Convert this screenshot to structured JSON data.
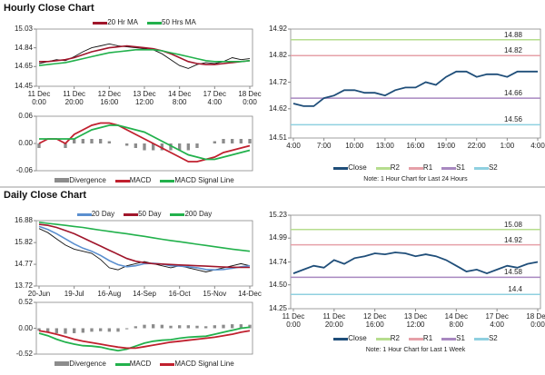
{
  "chart_data": [
    {
      "type": "line",
      "title": "Hourly Close Chart",
      "legend": "top",
      "categories": [
        "11 Dec 0:00",
        null,
        null,
        null,
        "11 Dec 20:00",
        null,
        null,
        null,
        "12 Dec 16:00",
        null,
        null,
        null,
        "13 Dec 12:00",
        null,
        null,
        null,
        "14 Dec 8:00",
        null,
        null,
        null,
        "17 Dec 4:00",
        null,
        null,
        null,
        "18 Dec 0:00"
      ],
      "values": [
        14.68,
        14.7,
        14.72,
        14.71,
        14.75,
        14.8,
        14.84,
        14.86,
        14.88,
        14.86,
        14.85,
        14.84,
        14.83,
        14.82,
        14.78,
        14.72,
        14.66,
        14.63,
        14.67,
        14.69,
        14.68,
        14.7,
        14.74,
        14.72,
        14.73
      ],
      "color": "#111111",
      "series": [
        {
          "name": "20 Hr MA",
          "color": "#a0162b",
          "values": [
            14.7,
            14.7,
            14.71,
            14.72,
            14.74,
            14.77,
            14.8,
            14.82,
            14.84,
            14.85,
            14.86,
            14.85,
            14.84,
            14.83,
            14.81,
            14.78,
            14.74,
            14.7,
            14.68,
            14.67,
            14.67,
            14.68,
            14.69,
            14.7,
            14.71
          ]
        },
        {
          "name": "50 Hrs MA",
          "color": "#22b14c",
          "values": [
            14.66,
            14.67,
            14.68,
            14.69,
            14.71,
            14.73,
            14.75,
            14.77,
            14.79,
            14.8,
            14.81,
            14.82,
            14.82,
            14.82,
            14.81,
            14.79,
            14.77,
            14.75,
            14.73,
            14.71,
            14.7,
            14.7,
            14.7,
            14.7,
            14.71
          ]
        }
      ],
      "ylim": [
        14.45,
        15.03
      ],
      "yticks": [
        14.45,
        14.65,
        14.84,
        15.03
      ]
    },
    {
      "type": "combo",
      "legend": "bottom",
      "series": [
        {
          "name": "Divergence",
          "style": "bar",
          "color": "#8c8c8c",
          "values": [
            -0.01,
            0,
            0,
            -0.01,
            0.01,
            0.01,
            0.01,
            0.01,
            0.005,
            0,
            -0.005,
            -0.01,
            -0.015,
            -0.015,
            -0.015,
            -0.015,
            -0.015,
            -0.015,
            -0.01,
            0,
            0.005,
            0.01,
            0.01,
            0.01,
            0.01
          ]
        },
        {
          "name": "MACD",
          "style": "line",
          "color": "#c0202e",
          "values": [
            0.0,
            0.01,
            0.01,
            0.0,
            0.02,
            0.03,
            0.04,
            0.045,
            0.045,
            0.04,
            0.03,
            0.02,
            0.01,
            0.0,
            -0.01,
            -0.02,
            -0.03,
            -0.04,
            -0.04,
            -0.035,
            -0.03,
            -0.02,
            -0.015,
            -0.01,
            -0.005
          ]
        },
        {
          "name": "MACD Signal Line",
          "style": "line",
          "color": "#22b14c",
          "values": [
            0.01,
            0.01,
            0.01,
            0.01,
            0.01,
            0.02,
            0.03,
            0.035,
            0.04,
            0.04,
            0.035,
            0.03,
            0.025,
            0.015,
            0.005,
            -0.005,
            -0.015,
            -0.025,
            -0.03,
            -0.035,
            -0.035,
            -0.03,
            -0.025,
            -0.02,
            -0.015
          ]
        }
      ],
      "ylim": [
        -0.06,
        0.06
      ],
      "yticks": [
        -0.06,
        {
          "value": 0,
          "label": "0.00"
        },
        0.06
      ]
    },
    {
      "type": "line",
      "legend": "bottom",
      "note": "Note: 1 Hour Chart for Last 24 Hours",
      "categories": [
        "4:00",
        null,
        null,
        "7:00",
        null,
        null,
        "10:00",
        null,
        null,
        "13:00",
        null,
        null,
        "16:00",
        null,
        null,
        "19:00",
        null,
        null,
        "22:00",
        null,
        null,
        "1:00",
        null,
        null,
        "4:00"
      ],
      "series": [
        {
          "name": "Close",
          "color": "#1f4e79",
          "values": [
            14.64,
            14.63,
            14.63,
            14.66,
            14.67,
            14.69,
            14.69,
            14.68,
            14.68,
            14.67,
            14.69,
            14.7,
            14.7,
            14.72,
            14.71,
            14.74,
            14.76,
            14.76,
            14.74,
            14.75,
            14.75,
            14.74,
            14.76,
            14.76,
            14.76
          ]
        }
      ],
      "levels": [
        {
          "name": "R2",
          "value": 14.88,
          "color": "#b6dd8e"
        },
        {
          "name": "R1",
          "value": 14.82,
          "color": "#e6a0a8"
        },
        {
          "name": "S1",
          "value": 14.66,
          "color": "#a888c0"
        },
        {
          "name": "S2",
          "value": 14.56,
          "color": "#8fd0e0"
        }
      ],
      "ylim": [
        14.51,
        14.92
      ],
      "yticks": [
        14.51,
        14.62,
        14.72,
        14.82,
        14.92
      ]
    },
    {
      "type": "line",
      "title": "Daily Close Chart",
      "legend": "top",
      "categories": [
        "20-Jun",
        null,
        null,
        null,
        "19-Jul",
        null,
        null,
        null,
        "16-Aug",
        null,
        null,
        null,
        "14-Sep",
        null,
        null,
        null,
        "16-Oct",
        null,
        null,
        null,
        "15-Nov",
        null,
        null,
        null,
        "14-Dec"
      ],
      "values": [
        16.5,
        16.3,
        16.0,
        15.7,
        15.5,
        15.4,
        15.3,
        15.0,
        14.6,
        14.5,
        14.7,
        14.8,
        14.9,
        14.8,
        14.7,
        14.6,
        14.7,
        14.6,
        14.5,
        14.4,
        14.5,
        14.6,
        14.7,
        14.8,
        14.7
      ],
      "color": "#111111",
      "series": [
        {
          "name": "20 Day",
          "color": "#5b8fcf",
          "values": [
            16.6,
            16.45,
            16.25,
            16.0,
            15.75,
            15.55,
            15.4,
            15.2,
            14.95,
            14.75,
            14.65,
            14.7,
            14.8,
            14.82,
            14.78,
            14.7,
            14.68,
            14.65,
            14.6,
            14.52,
            14.5,
            14.52,
            14.58,
            14.65,
            14.7
          ]
        },
        {
          "name": "50 Day",
          "color": "#a0162b",
          "values": [
            16.7,
            16.65,
            16.55,
            16.4,
            16.25,
            16.05,
            15.85,
            15.65,
            15.45,
            15.25,
            15.05,
            14.92,
            14.85,
            14.8,
            14.78,
            14.76,
            14.74,
            14.72,
            14.7,
            14.68,
            14.66,
            14.64,
            14.63,
            14.62,
            14.62
          ]
        },
        {
          "name": "200 Day",
          "color": "#22b14c",
          "values": [
            16.8,
            16.75,
            16.7,
            16.65,
            16.6,
            16.55,
            16.48,
            16.42,
            16.36,
            16.3,
            16.25,
            16.18,
            16.12,
            16.05,
            15.98,
            15.92,
            15.86,
            15.8,
            15.74,
            15.68,
            15.62,
            15.56,
            15.5,
            15.45,
            15.4
          ]
        }
      ],
      "ylim": [
        13.72,
        16.88
      ],
      "yticks": [
        13.72,
        14.77,
        15.82,
        16.88
      ]
    },
    {
      "type": "combo",
      "legend": "bottom",
      "series": [
        {
          "name": "Divergence",
          "style": "bar",
          "color": "#8c8c8c",
          "values": [
            -0.05,
            -0.07,
            -0.1,
            -0.11,
            -0.1,
            -0.09,
            -0.07,
            -0.06,
            -0.07,
            -0.07,
            -0.02,
            0.04,
            0.07,
            0.08,
            0.07,
            0.05,
            0.06,
            0.06,
            0.05,
            0.04,
            0.06,
            0.07,
            0.08,
            0.08,
            0.07
          ]
        },
        {
          "name": "MACD",
          "style": "line",
          "color": "#22b14c",
          "values": [
            -0.1,
            -0.15,
            -0.22,
            -0.28,
            -0.32,
            -0.35,
            -0.36,
            -0.38,
            -0.42,
            -0.45,
            -0.42,
            -0.36,
            -0.3,
            -0.26,
            -0.24,
            -0.23,
            -0.2,
            -0.18,
            -0.17,
            -0.16,
            -0.12,
            -0.08,
            -0.04,
            0.0,
            0.02
          ]
        },
        {
          "name": "MACD Signal Line",
          "style": "line",
          "color": "#c0202e",
          "values": [
            -0.05,
            -0.08,
            -0.12,
            -0.17,
            -0.22,
            -0.26,
            -0.29,
            -0.32,
            -0.35,
            -0.38,
            -0.4,
            -0.4,
            -0.37,
            -0.34,
            -0.31,
            -0.28,
            -0.26,
            -0.24,
            -0.22,
            -0.2,
            -0.18,
            -0.15,
            -0.12,
            -0.08,
            -0.05
          ]
        }
      ],
      "ylim": [
        -0.52,
        0.52
      ],
      "yticks": [
        -0.52,
        {
          "value": 0,
          "label": "0.00"
        },
        0.52
      ]
    },
    {
      "type": "line",
      "legend": "bottom",
      "note": "Note: 1 Hour Chart for Last 1 Week",
      "categories": [
        "11 Dec 0:00",
        null,
        null,
        null,
        "11 Dec 20:00",
        null,
        null,
        null,
        "12 Dec 16:00",
        null,
        null,
        null,
        "13 Dec 12:00",
        null,
        null,
        null,
        "14 Dec 8:00",
        null,
        null,
        null,
        "17 Dec 4:00",
        null,
        null,
        null,
        "18 Dec 0:00"
      ],
      "series": [
        {
          "name": "Close",
          "color": "#1f4e79",
          "values": [
            14.62,
            14.66,
            14.7,
            14.68,
            14.76,
            14.72,
            14.78,
            14.8,
            14.83,
            14.82,
            14.84,
            14.83,
            14.8,
            14.82,
            14.8,
            14.76,
            14.7,
            14.64,
            14.66,
            14.62,
            14.66,
            14.7,
            14.68,
            14.72,
            14.74
          ]
        }
      ],
      "levels": [
        {
          "name": "R2",
          "value": 15.08,
          "color": "#b6dd8e"
        },
        {
          "name": "R1",
          "value": 14.92,
          "color": "#e6a0a8"
        },
        {
          "name": "S1",
          "value": 14.58,
          "color": "#a888c0"
        },
        {
          "name": "S2",
          "value": 14.4,
          "color": "#8fd0e0"
        }
      ],
      "ylim": [
        14.25,
        15.23
      ],
      "yticks": [
        14.25,
        {
          "value": 14.5,
          "label": "14.50"
        },
        14.74,
        14.99,
        15.23
      ]
    }
  ]
}
